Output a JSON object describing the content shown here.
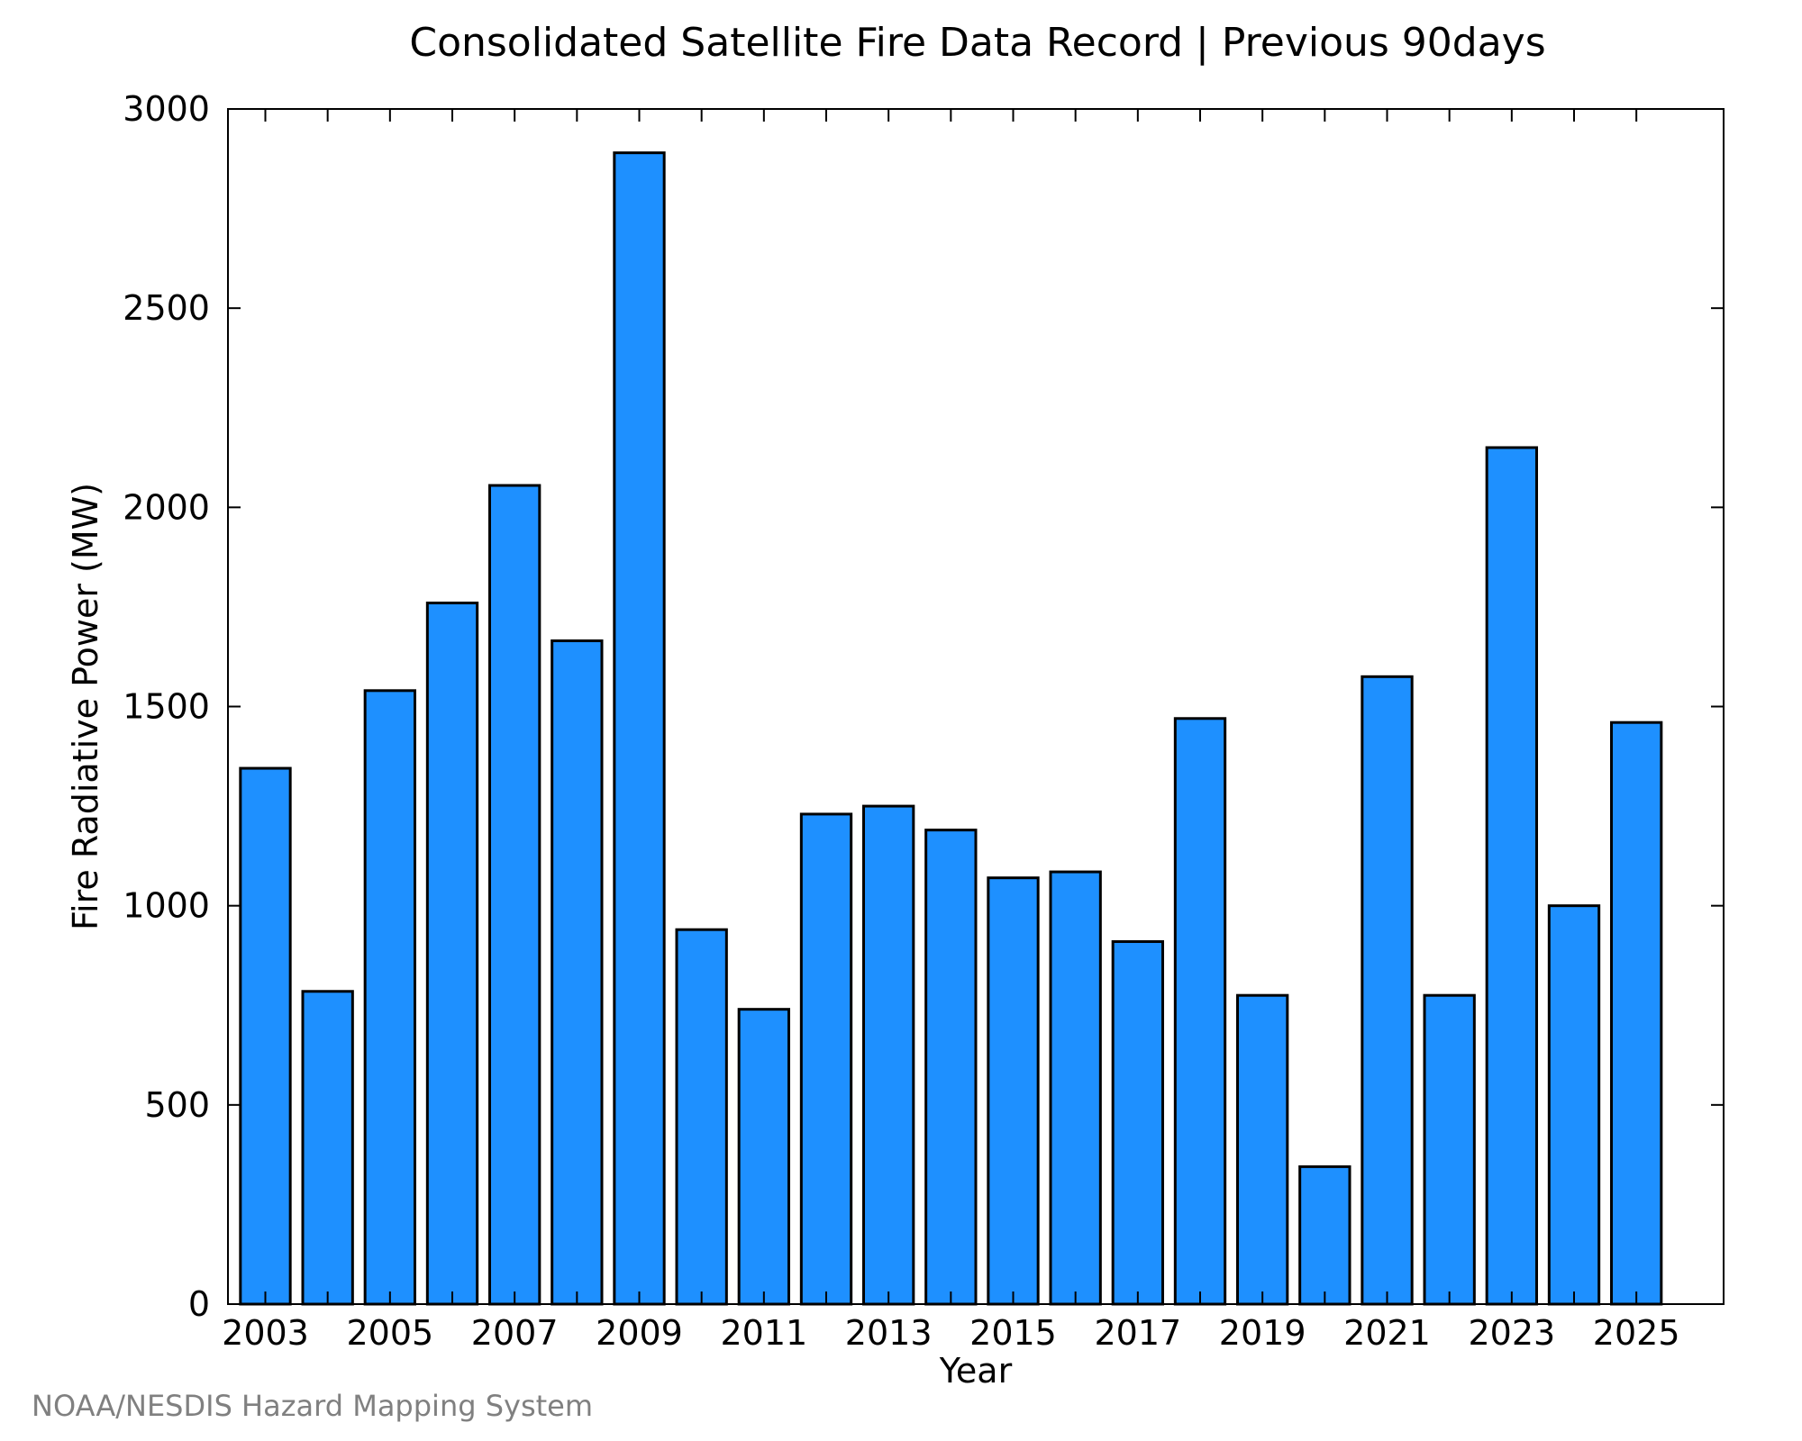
{
  "chart_data": {
    "type": "bar",
    "title": "Consolidated Satellite Fire Data Record | Previous 90days",
    "xlabel": "Year",
    "ylabel": "Fire Radiative Power (MW)",
    "ylim": [
      0,
      3000
    ],
    "yticks": [
      0,
      500,
      1000,
      1500,
      2000,
      2500,
      3000
    ],
    "xlim": [
      2002.4,
      2026.4
    ],
    "xtick_values": [
      2003,
      2005,
      2007,
      2009,
      2011,
      2013,
      2015,
      2017,
      2019,
      2021,
      2023,
      2025
    ],
    "xtick_labels": [
      "2003",
      "2005",
      "2007",
      "2009",
      "2011",
      "2013",
      "2015",
      "2017",
      "2019",
      "2021",
      "2023",
      "2025"
    ],
    "x": [
      2003,
      2004,
      2005,
      2006,
      2007,
      2008,
      2009,
      2010,
      2011,
      2012,
      2013,
      2014,
      2015,
      2016,
      2017,
      2018,
      2019,
      2020,
      2021,
      2022,
      2023,
      2024,
      2025
    ],
    "values": [
      1345,
      785,
      1540,
      1760,
      2055,
      1665,
      2890,
      940,
      740,
      1230,
      1250,
      1190,
      1070,
      1085,
      910,
      1470,
      775,
      345,
      1575,
      775,
      2150,
      1000,
      1460
    ],
    "grid": false,
    "bar_color": "#1E90FF",
    "credit": "NOAA/NESDIS Hazard Mapping System"
  }
}
